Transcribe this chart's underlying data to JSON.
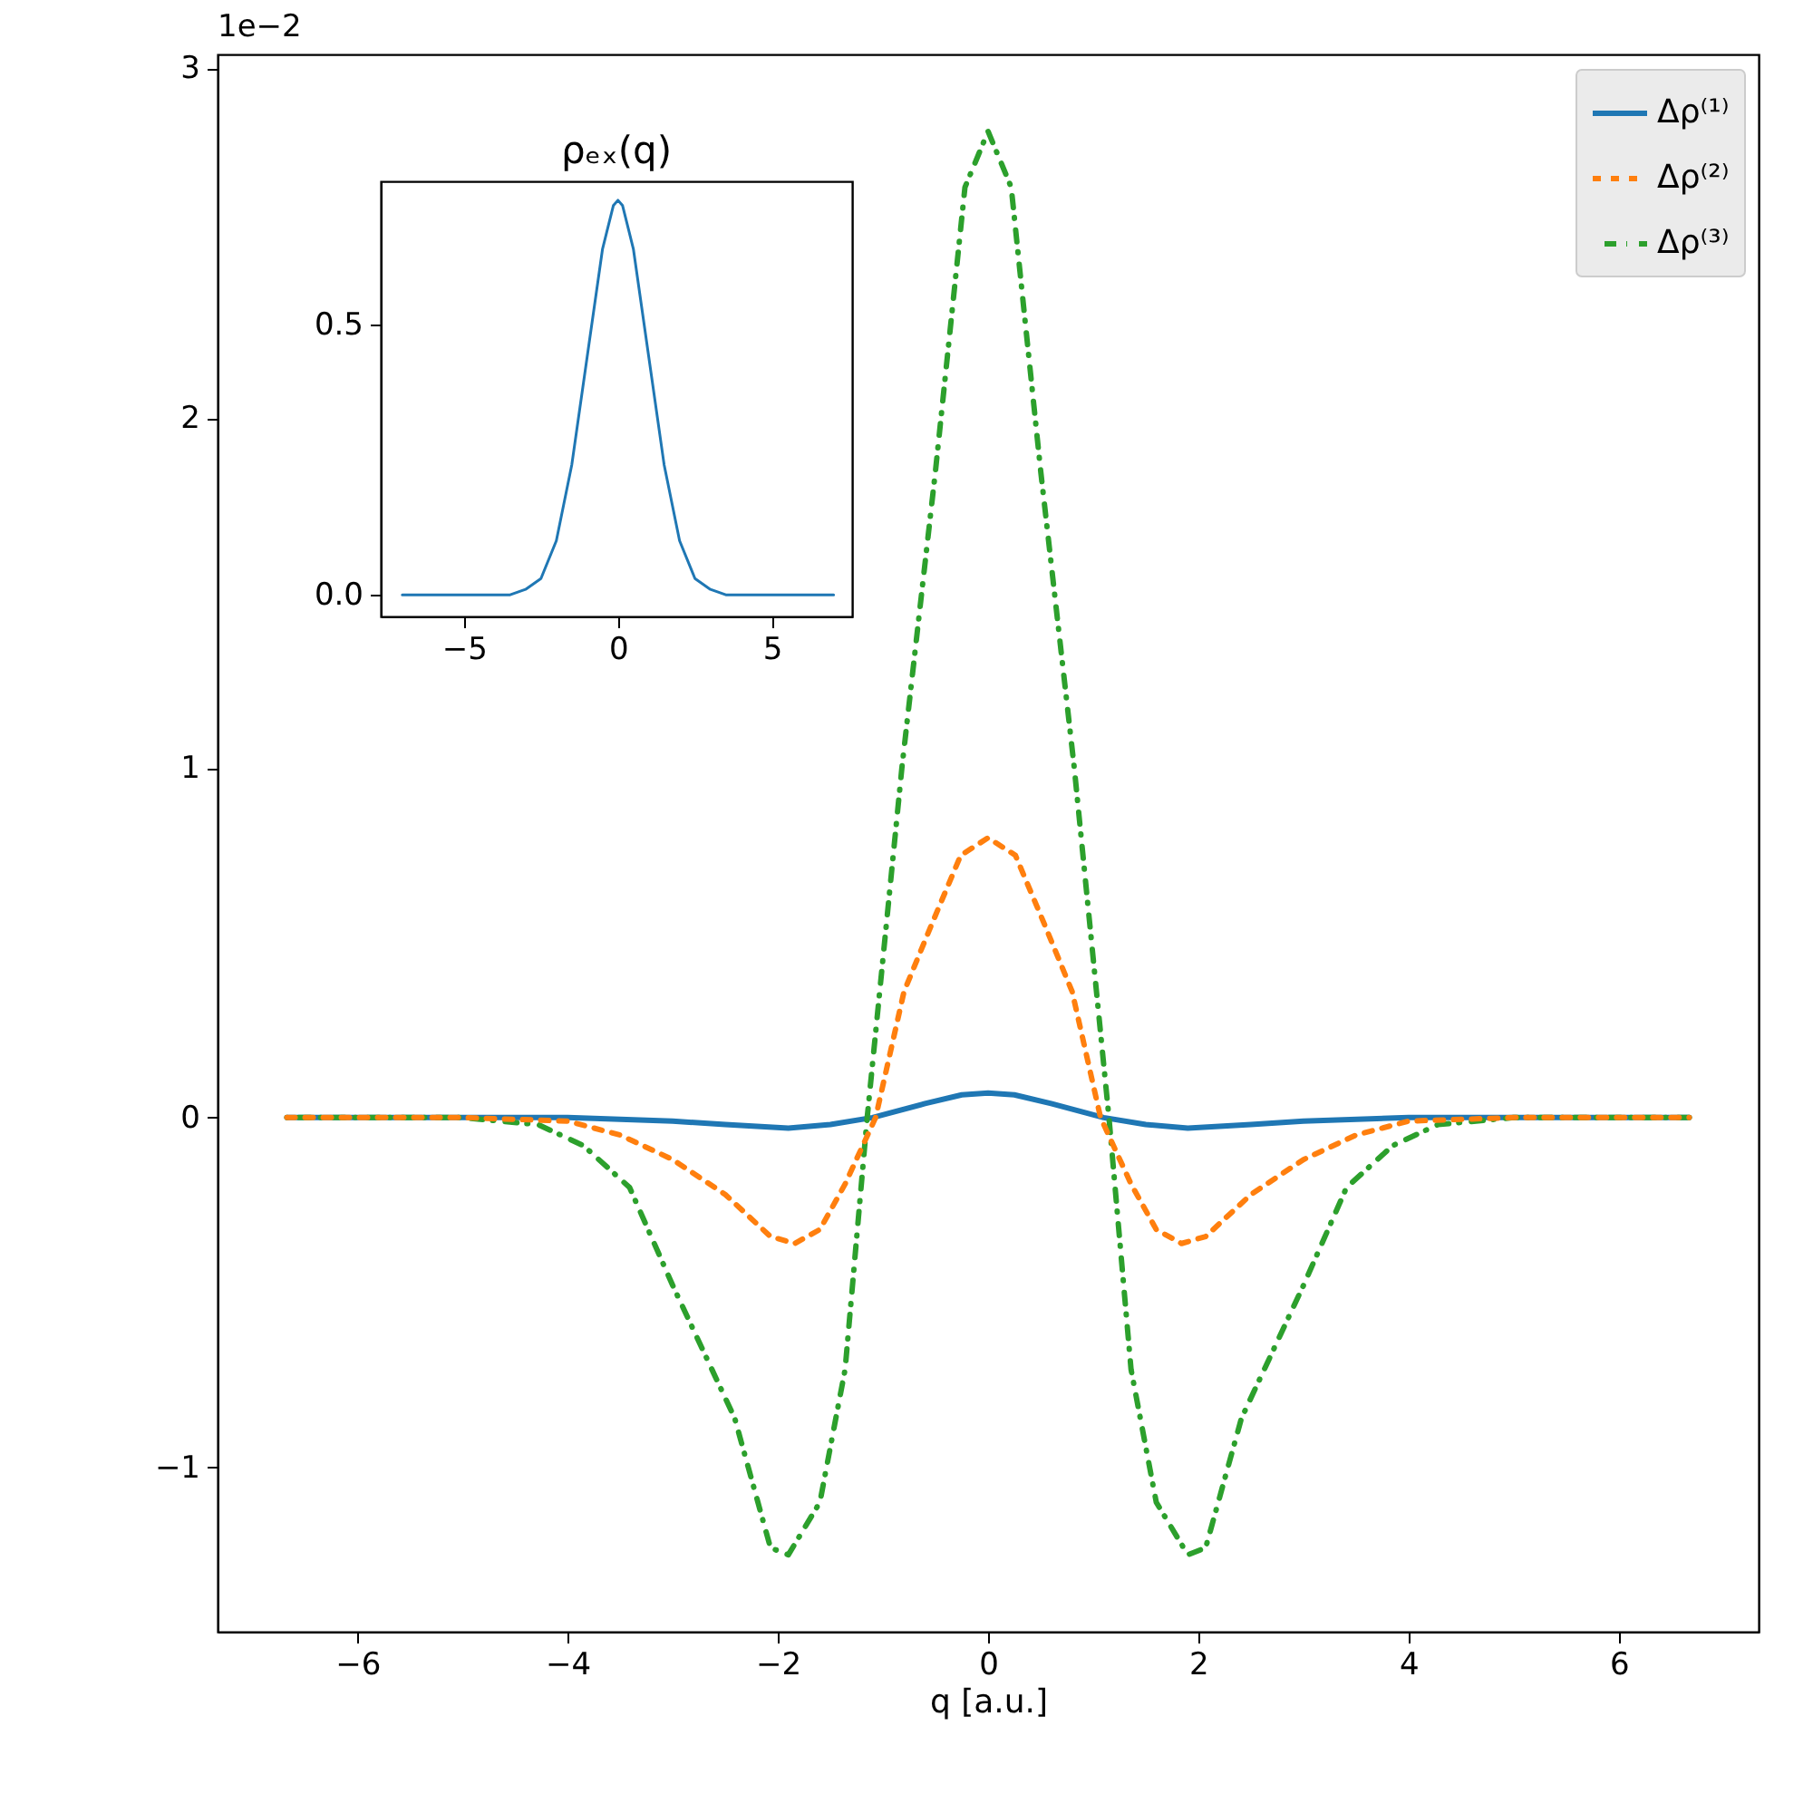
{
  "chart_data": [
    {
      "type": "line",
      "xlabel": "q [a.u.]",
      "annotations": [
        "1e−2"
      ],
      "xlim": [
        -7.33,
        7.33
      ],
      "ylim": [
        -1.47,
        3.04
      ],
      "xticks": [
        -6,
        -4,
        -2,
        0,
        2,
        4,
        6
      ],
      "yticks": [
        -1,
        0,
        1,
        2,
        3
      ],
      "grid": false,
      "legend": "top right",
      "series": [
        {
          "name": "Δρ⁽¹⁾",
          "color": "#1f77b4",
          "line_style": "solid",
          "x": [
            -6.67,
            -5,
            -4,
            -3,
            -2.5,
            -1.9,
            -1.5,
            -1.1,
            -0.6,
            -0.25,
            0,
            0.25,
            0.6,
            1.1,
            1.5,
            1.9,
            2.5,
            3,
            4,
            5,
            6.67
          ],
          "values": [
            0,
            0,
            0,
            -0.01,
            -0.02,
            -0.03,
            -0.02,
            0,
            0.04,
            0.065,
            0.07,
            0.065,
            0.04,
            0,
            -0.02,
            -0.03,
            -0.02,
            -0.01,
            0,
            0,
            0
          ]
        },
        {
          "name": "Δρ⁽²⁾",
          "color": "#ff7f0e",
          "line_style": "dashed",
          "x": [
            -6.67,
            -5,
            -4,
            -3.5,
            -3,
            -2.5,
            -2.07,
            -1.84,
            -1.6,
            -1.36,
            -1.07,
            -0.8,
            -0.54,
            -0.26,
            0,
            0.26,
            0.54,
            0.8,
            1.07,
            1.36,
            1.6,
            1.84,
            2.07,
            2.5,
            3,
            3.5,
            4,
            5,
            6.67
          ],
          "values": [
            0,
            0,
            -0.01,
            -0.05,
            -0.12,
            -0.22,
            -0.34,
            -0.36,
            -0.32,
            -0.19,
            0,
            0.36,
            0.55,
            0.75,
            0.8,
            0.75,
            0.55,
            0.36,
            0,
            -0.19,
            -0.32,
            -0.36,
            -0.34,
            -0.22,
            -0.12,
            -0.05,
            -0.01,
            0,
            0
          ]
        },
        {
          "name": "Δρ⁽³⁾",
          "color": "#2ca02c",
          "line_style": "dashdot",
          "x": [
            -6.67,
            -5,
            -4.28,
            -3.85,
            -3.41,
            -3.0,
            -2.41,
            -2.07,
            -1.9,
            -1.6,
            -1.36,
            -1.15,
            -0.82,
            -0.5,
            -0.22,
            0,
            0.22,
            0.5,
            0.82,
            1.15,
            1.36,
            1.6,
            1.9,
            2.07,
            2.41,
            3.0,
            3.41,
            3.85,
            4.28,
            5,
            6.67
          ],
          "values": [
            0,
            0,
            -0.02,
            -0.08,
            -0.2,
            -0.48,
            -0.86,
            -1.23,
            -1.25,
            -1.1,
            -0.72,
            0,
            1.0,
            1.85,
            2.66,
            2.82,
            2.66,
            1.85,
            1.0,
            0,
            -0.72,
            -1.1,
            -1.25,
            -1.23,
            -0.86,
            -0.48,
            -0.2,
            -0.08,
            -0.02,
            0,
            0
          ]
        }
      ]
    },
    {
      "type": "line",
      "title": "ρₑₓ(q)",
      "xlim": [
        -7.7,
        7.6
      ],
      "ylim": [
        -0.04,
        0.765
      ],
      "xticks": [
        -5,
        0,
        5
      ],
      "yticks": [
        {
          "value": 0,
          "label": "0.0"
        },
        0.5
      ],
      "grid": false,
      "legend": false,
      "series": [
        {
          "color": "#1f77b4",
          "line_style": "solid",
          "x": [
            -7,
            -5,
            -4,
            -3.5,
            -3,
            -2.5,
            -2,
            -1.5,
            -1,
            -0.5,
            -0.15,
            0,
            0.15,
            0.5,
            1,
            1.5,
            2,
            2.5,
            3,
            3.5,
            4,
            5,
            7
          ],
          "values": [
            0,
            0,
            0,
            0,
            0.01,
            0.03,
            0.1,
            0.24,
            0.44,
            0.64,
            0.72,
            0.73,
            0.72,
            0.64,
            0.44,
            0.24,
            0.1,
            0.03,
            0.01,
            0,
            0,
            0,
            0
          ]
        }
      ]
    }
  ]
}
